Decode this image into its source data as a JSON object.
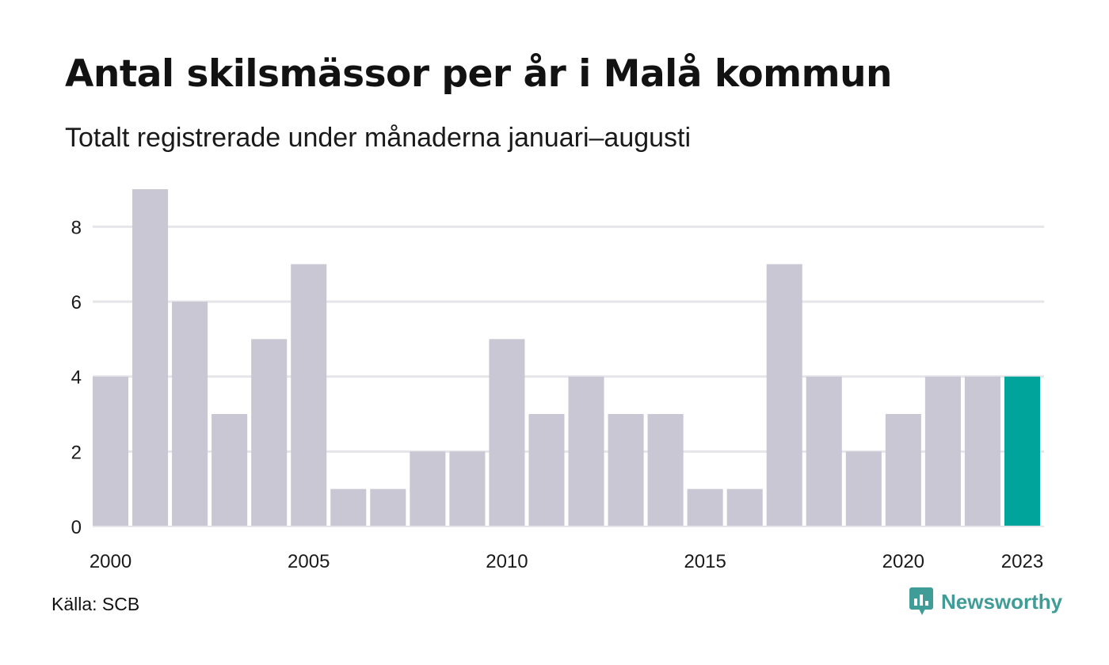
{
  "title": "Antal skilsmässor per år i Malå kommun",
  "subtitle": "Totalt registrerade under månaderna januari–augusti",
  "source": "Källa: SCB",
  "brand": {
    "name": "Newsworthy",
    "icon": "newsworthy-logo-icon"
  },
  "colors": {
    "bar": "#c8c7d3",
    "highlight": "#00a49a",
    "grid": "#e6e6ea",
    "brand": "#3f9c96"
  },
  "chart_data": {
    "type": "bar",
    "categories": [
      "2000",
      "2001",
      "2002",
      "2003",
      "2004",
      "2005",
      "2006",
      "2007",
      "2008",
      "2009",
      "2010",
      "2011",
      "2012",
      "2013",
      "2014",
      "2015",
      "2016",
      "2017",
      "2018",
      "2019",
      "2020",
      "2021",
      "2022",
      "2023"
    ],
    "values": [
      4,
      9,
      6,
      3,
      5,
      7,
      1,
      1,
      2,
      2,
      5,
      3,
      4,
      3,
      3,
      1,
      1,
      7,
      4,
      2,
      3,
      4,
      4,
      4
    ],
    "highlight_category": "2023",
    "x_tick_labels": [
      "2000",
      "2005",
      "2010",
      "2015",
      "2020",
      "2023"
    ],
    "y_ticks": [
      0,
      2,
      4,
      6,
      8
    ],
    "ylim": [
      0,
      9
    ],
    "grid": true,
    "xlabel": "",
    "ylabel": ""
  }
}
